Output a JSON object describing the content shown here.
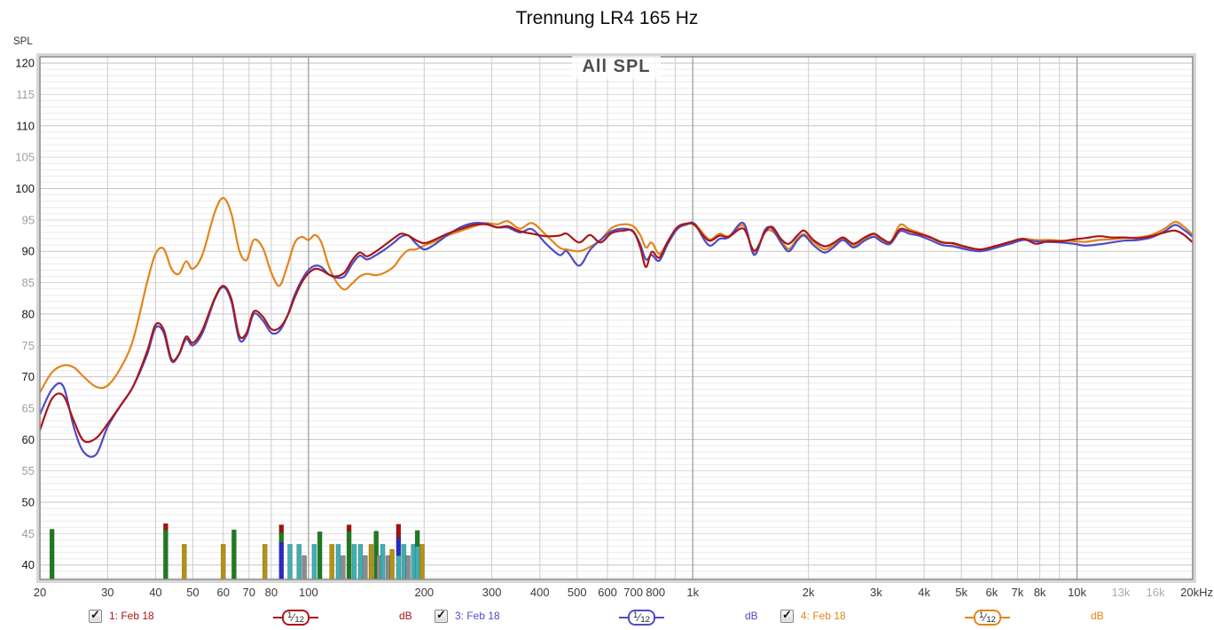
{
  "title": "Trennung LR4 165 Hz",
  "chart": {
    "overlay_label": "All SPL",
    "y_axis_label": "SPL",
    "y_ticks": [
      120,
      115,
      110,
      105,
      100,
      95,
      90,
      85,
      80,
      75,
      70,
      65,
      60,
      55,
      50,
      45,
      40
    ],
    "x_ticks": [
      {
        "f": 20,
        "l": "20"
      },
      {
        "f": 30,
        "l": "30"
      },
      {
        "f": 40,
        "l": "40"
      },
      {
        "f": 50,
        "l": "50"
      },
      {
        "f": 60,
        "l": "60"
      },
      {
        "f": 70,
        "l": "70"
      },
      {
        "f": 80,
        "l": "80"
      },
      {
        "f": 100,
        "l": "100"
      },
      {
        "f": 200,
        "l": "200"
      },
      {
        "f": 300,
        "l": "300"
      },
      {
        "f": 400,
        "l": "400"
      },
      {
        "f": 500,
        "l": "500"
      },
      {
        "f": 600,
        "l": "600"
      },
      {
        "f": 700,
        "l": "700"
      },
      {
        "f": 800,
        "l": "800"
      },
      {
        "f": 1000,
        "l": "1k"
      },
      {
        "f": 2000,
        "l": "2k"
      },
      {
        "f": 3000,
        "l": "3k"
      },
      {
        "f": 4000,
        "l": "4k"
      },
      {
        "f": 5000,
        "l": "5k"
      },
      {
        "f": 6000,
        "l": "6k"
      },
      {
        "f": 7000,
        "l": "7k"
      },
      {
        "f": 8000,
        "l": "8k"
      },
      {
        "f": 10000,
        "l": "10k"
      },
      {
        "f": 13000,
        "l": "13k",
        "m": true
      },
      {
        "f": 16000,
        "l": "16k",
        "m": true
      },
      {
        "f": 20000,
        "l": "20kHz"
      }
    ],
    "grid_colors": {
      "minor": "#ebebeb",
      "mid": "#d9d9d9",
      "major_h": "#c5c5c5",
      "vert": "#cdcdcd",
      "vert_major": "#989898",
      "border": "#8a8a8a"
    }
  },
  "chart_data": {
    "type": "line",
    "title": "All SPL",
    "x_unit": "Hz",
    "y_unit": "dB SPL",
    "log_x": true,
    "x_range": [
      20,
      20000
    ],
    "y_range": [
      37.7,
      121
    ],
    "series": [
      {
        "name": "1: Feb 18",
        "color": "#aa1616"
      },
      {
        "name": "3: Feb 18",
        "color": "#4c4cc8"
      },
      {
        "name": "4: Feb 18",
        "color": "#e2851b"
      }
    ],
    "points": [
      [
        20,
        61.5,
        64,
        67.5
      ],
      [
        21.5,
        66.5,
        68,
        70.7
      ],
      [
        23,
        67,
        68.5,
        71.8
      ],
      [
        24.5,
        63,
        62,
        71.5
      ],
      [
        26,
        59.8,
        58,
        70
      ],
      [
        28,
        60.2,
        57.6,
        68.4
      ],
      [
        30,
        62.5,
        62,
        68.6
      ],
      [
        32.5,
        65.5,
        65.5,
        71.5
      ],
      [
        35,
        68.5,
        68.5,
        76
      ],
      [
        38,
        74,
        73.5,
        85
      ],
      [
        40,
        78.3,
        77.8,
        89.6
      ],
      [
        42,
        77.5,
        77,
        90.4
      ],
      [
        44,
        72.8,
        72.5,
        87.2
      ],
      [
        46,
        73.6,
        73.5,
        86.4
      ],
      [
        48,
        76.4,
        76,
        88.4
      ],
      [
        50,
        75.4,
        75,
        87.2
      ],
      [
        53,
        77.5,
        77,
        89.5
      ],
      [
        57,
        82.5,
        82.3,
        96.2
      ],
      [
        60,
        84.5,
        84.3,
        98.5
      ],
      [
        63,
        82.4,
        82,
        96
      ],
      [
        66,
        76.6,
        76,
        90.2
      ],
      [
        69,
        77,
        76.6,
        88.6
      ],
      [
        72,
        80.4,
        80,
        91.8
      ],
      [
        76,
        79.6,
        79,
        90.6
      ],
      [
        80,
        77.6,
        77,
        86.6
      ],
      [
        84,
        77.8,
        77.3,
        84.5
      ],
      [
        88,
        79.6,
        79.6,
        87.6
      ],
      [
        92,
        82.6,
        83,
        91.3
      ],
      [
        96,
        85,
        85.4,
        92.3
      ],
      [
        100,
        86.5,
        87,
        91.8
      ],
      [
        104,
        87.2,
        87.7,
        92.6
      ],
      [
        108,
        87,
        87.5,
        91.4
      ],
      [
        113,
        86.3,
        86.3,
        87.6
      ],
      [
        118,
        86,
        85.8,
        85.2
      ],
      [
        124,
        86.6,
        86,
        83.9
      ],
      [
        130,
        88.6,
        88,
        84.9
      ],
      [
        136,
        89.8,
        89.3,
        86
      ],
      [
        142,
        89.2,
        88.7,
        86.4
      ],
      [
        150,
        90,
        89.4,
        86.2
      ],
      [
        158,
        91,
        90.3,
        86.6
      ],
      [
        167,
        92.1,
        91.4,
        87.6
      ],
      [
        174,
        92.8,
        92.3,
        89.1
      ],
      [
        182,
        92.5,
        92.5,
        90.2
      ],
      [
        190,
        91.8,
        91.3,
        90.3
      ],
      [
        200,
        91.3,
        90.3,
        90.9
      ],
      [
        212,
        91.8,
        91,
        91.5
      ],
      [
        230,
        92.8,
        92.6,
        92.5
      ],
      [
        250,
        93.6,
        93.9,
        93.3
      ],
      [
        270,
        94.2,
        94.5,
        94
      ],
      [
        290,
        94.3,
        94.4,
        94.5
      ],
      [
        310,
        93.8,
        93.8,
        94.3
      ],
      [
        330,
        94,
        93.8,
        94.8
      ],
      [
        355,
        93.2,
        93,
        93.6
      ],
      [
        382,
        92.8,
        93.5,
        94.5
      ],
      [
        415,
        92.4,
        91.2,
        92.6
      ],
      [
        450,
        92.5,
        89.4,
        90.6
      ],
      [
        470,
        92.8,
        90,
        90.3
      ],
      [
        506,
        91.4,
        87.7,
        90
      ],
      [
        540,
        92.6,
        90.2,
        90.7
      ],
      [
        575,
        91.4,
        91.8,
        91.8
      ],
      [
        615,
        92.9,
        93.2,
        93.7
      ],
      [
        660,
        93.3,
        93.6,
        94.3
      ],
      [
        700,
        93.2,
        93.1,
        94
      ],
      [
        730,
        90.6,
        91.1,
        92.6
      ],
      [
        755,
        87.5,
        88.7,
        90.6
      ],
      [
        782,
        89.9,
        89.4,
        91.4
      ],
      [
        818,
        89,
        88.5,
        89.6
      ],
      [
        860,
        91.5,
        91.1,
        91.4
      ],
      [
        910,
        93.8,
        93.5,
        93.6
      ],
      [
        960,
        94.4,
        94.3,
        94.2
      ],
      [
        1010,
        94.2,
        94.4,
        94.4
      ],
      [
        1075,
        92.2,
        91.7,
        92.5
      ],
      [
        1115,
        91.7,
        90.9,
        91.9
      ],
      [
        1175,
        92.5,
        92,
        92.8
      ],
      [
        1240,
        92.3,
        92.2,
        92.4
      ],
      [
        1355,
        93.6,
        94.5,
        94.1
      ],
      [
        1445,
        90.1,
        89.4,
        89.8
      ],
      [
        1540,
        93,
        93.4,
        93
      ],
      [
        1610,
        93.9,
        93.6,
        93.2
      ],
      [
        1700,
        91.9,
        91.3,
        91.6
      ],
      [
        1780,
        91.2,
        90,
        90.4
      ],
      [
        1870,
        92.5,
        91.7,
        92
      ],
      [
        1950,
        93.3,
        92.5,
        92.7
      ],
      [
        2060,
        91.8,
        91,
        91.5
      ],
      [
        2200,
        90.8,
        89.8,
        90.3
      ],
      [
        2320,
        91.3,
        90.6,
        91
      ],
      [
        2460,
        92.2,
        91.8,
        92
      ],
      [
        2620,
        91.2,
        90.6,
        90.9
      ],
      [
        2800,
        92.2,
        91.7,
        92
      ],
      [
        2960,
        92.8,
        92.3,
        92.7
      ],
      [
        3110,
        92,
        91.5,
        91.8
      ],
      [
        3270,
        91.5,
        91.2,
        91.4
      ],
      [
        3460,
        93.5,
        93.2,
        94.2
      ],
      [
        3660,
        93.2,
        92.8,
        93.5
      ],
      [
        3870,
        92.8,
        92.5,
        93
      ],
      [
        4150,
        92.2,
        91.8,
        92.3
      ],
      [
        4450,
        91.4,
        91,
        91.5
      ],
      [
        4750,
        91.3,
        90.8,
        91.2
      ],
      [
        5150,
        90.7,
        90.3,
        90.6
      ],
      [
        5600,
        90.3,
        90,
        90.3
      ],
      [
        6100,
        90.8,
        90.5,
        90.8
      ],
      [
        6700,
        91.5,
        91.2,
        91.5
      ],
      [
        7250,
        92,
        91.8,
        92
      ],
      [
        7800,
        91.2,
        91.6,
        91.8
      ],
      [
        8400,
        91.6,
        91.5,
        91.8
      ],
      [
        9100,
        91.6,
        91.4,
        91.7
      ],
      [
        9800,
        91.9,
        91.2,
        91.6
      ],
      [
        10500,
        92.1,
        90.9,
        91.5
      ],
      [
        11400,
        92.4,
        91.1,
        91.8
      ],
      [
        12300,
        92.2,
        91.4,
        91.9
      ],
      [
        13300,
        92.2,
        91.7,
        92.1
      ],
      [
        14400,
        92.1,
        91.8,
        92.2
      ],
      [
        15600,
        92.4,
        92.2,
        92.6
      ],
      [
        16900,
        93,
        93.2,
        93.6
      ],
      [
        18000,
        93.3,
        94.2,
        94.7
      ],
      [
        19000,
        92.6,
        93.4,
        93.9
      ],
      [
        20000,
        91.4,
        92.3,
        92.6
      ]
    ],
    "bar_colors": {
      "green": "#1e7b1e",
      "olive": "#b3930e",
      "cyan": "#3fafb4",
      "gray": "#8b8b8b",
      "blue": "#2a2ac8",
      "red": "#a31212"
    },
    "bars": [
      [
        21.5,
        [
          [
            "green",
            37.7,
            45.7
          ]
        ]
      ],
      [
        42.5,
        [
          [
            "green",
            37.7,
            45.6
          ],
          [
            "red",
            45.6,
            46.6
          ]
        ]
      ],
      [
        47.5,
        [
          [
            "olive",
            37.7,
            43.3
          ]
        ]
      ],
      [
        60,
        [
          [
            "olive",
            37.7,
            43.3
          ]
        ]
      ],
      [
        64,
        [
          [
            "green",
            37.7,
            45.6
          ]
        ]
      ],
      [
        77,
        [
          [
            "olive",
            37.7,
            43.3
          ]
        ]
      ],
      [
        85,
        [
          [
            "blue",
            37.7,
            43.6
          ],
          [
            "green",
            43.6,
            45.2
          ],
          [
            "red",
            45.2,
            46.4
          ]
        ]
      ],
      [
        89.5,
        [
          [
            "cyan",
            37.7,
            43.3
          ]
        ]
      ],
      [
        94.5,
        [
          [
            "cyan",
            37.7,
            43.3
          ]
        ]
      ],
      [
        97.5,
        [
          [
            "gray",
            37.7,
            41.5
          ]
        ]
      ],
      [
        103.5,
        [
          [
            "cyan",
            37.7,
            43.3
          ]
        ]
      ],
      [
        107,
        [
          [
            "green",
            37.7,
            45.3
          ]
        ]
      ],
      [
        115,
        [
          [
            "olive",
            37.7,
            43.3
          ]
        ]
      ],
      [
        119.5,
        [
          [
            "cyan",
            37.7,
            43.3
          ]
        ]
      ],
      [
        123,
        [
          [
            "gray",
            37.7,
            41.5
          ]
        ]
      ],
      [
        127.5,
        [
          [
            "green",
            37.7,
            45.4
          ],
          [
            "red",
            45.4,
            46.4
          ]
        ]
      ],
      [
        131.5,
        [
          [
            "cyan",
            37.7,
            43.3
          ]
        ]
      ],
      [
        136.5,
        [
          [
            "cyan",
            37.7,
            43.3
          ]
        ]
      ],
      [
        140.5,
        [
          [
            "gray",
            37.7,
            41.5
          ]
        ]
      ],
      [
        145.5,
        [
          [
            "olive",
            37.7,
            43.3
          ]
        ]
      ],
      [
        150,
        [
          [
            "green",
            37.7,
            45.4
          ]
        ]
      ],
      [
        152.5,
        [
          [
            "gray",
            37.7,
            41.5
          ]
        ]
      ],
      [
        156,
        [
          [
            "cyan",
            37.7,
            43.3
          ]
        ]
      ],
      [
        161,
        [
          [
            "gray",
            37.7,
            41.5
          ]
        ]
      ],
      [
        165,
        [
          [
            "olive",
            37.7,
            42.5
          ]
        ]
      ],
      [
        171.5,
        [
          [
            "cyan",
            37.7,
            41.5
          ],
          [
            "blue",
            41.5,
            44.3
          ],
          [
            "red",
            44.3,
            46.5
          ]
        ]
      ],
      [
        177,
        [
          [
            "cyan",
            37.7,
            43.3
          ]
        ]
      ],
      [
        181.5,
        [
          [
            "gray",
            37.7,
            41.5
          ]
        ]
      ],
      [
        187.5,
        [
          [
            "cyan",
            37.7,
            43.3
          ]
        ]
      ],
      [
        192,
        [
          [
            "cyan",
            37.7,
            43
          ],
          [
            "green",
            43,
            45.5
          ]
        ]
      ],
      [
        197.5,
        [
          [
            "olive",
            37.7,
            43.3
          ]
        ]
      ]
    ]
  },
  "legend": {
    "items": [
      {
        "label": "1: Feb 18",
        "smoothing_num": "1",
        "smoothing_den": "12",
        "unit": "dB",
        "color": "#aa1616",
        "checked": true
      },
      {
        "label": "3: Feb 18",
        "smoothing_num": "1",
        "smoothing_den": "12",
        "unit": "dB",
        "color": "#4c4cc8",
        "checked": true
      },
      {
        "label": "4: Feb 18",
        "smoothing_num": "1",
        "smoothing_den": "12",
        "unit": "dB",
        "color": "#e2851b",
        "checked": true
      }
    ]
  }
}
